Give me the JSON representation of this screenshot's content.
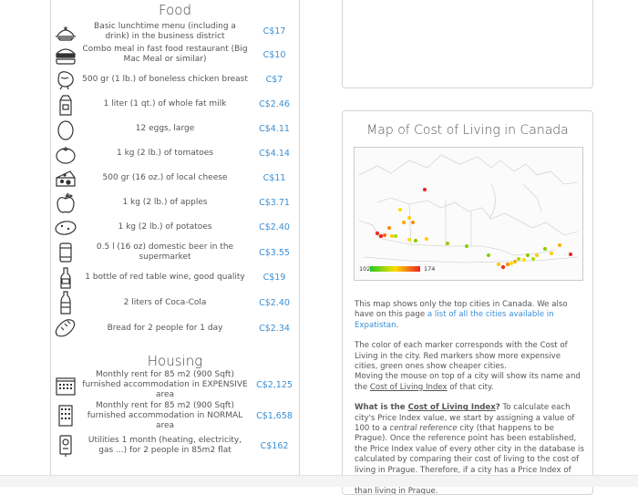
{
  "food": {
    "title": "Food",
    "items": [
      {
        "icon": "tray-icon",
        "label": "Basic lunchtime menu (including a drink) in the business district",
        "price": "C$17"
      },
      {
        "icon": "burger-icon",
        "label": "Combo meal in fast food restaurant (Big Mac Meal or similar)",
        "price": "C$10"
      },
      {
        "icon": "chicken-icon",
        "label": "500 gr (1 lb.) of boneless chicken breast",
        "price": "C$7"
      },
      {
        "icon": "milk-carton-icon",
        "label": "1 liter (1 qt.) of whole fat milk",
        "price": "C$2.46"
      },
      {
        "icon": "egg-icon",
        "label": "12 eggs, large",
        "price": "C$4.11"
      },
      {
        "icon": "tomato-icon",
        "label": "1 kg (2 lb.) of tomatoes",
        "price": "C$4.14"
      },
      {
        "icon": "cheese-icon",
        "label": "500 gr (16 oz.) of local cheese",
        "price": "C$11"
      },
      {
        "icon": "apple-icon",
        "label": "1 kg (2 lb.) of apples",
        "price": "C$3.71"
      },
      {
        "icon": "potato-icon",
        "label": "1 kg (2 lb.) of potatoes",
        "price": "C$2.40"
      },
      {
        "icon": "beer-can-icon",
        "label": "0.5 l (16 oz) domestic beer in the supermarket",
        "price": "C$3.55"
      },
      {
        "icon": "wine-bottle-icon",
        "label": "1 bottle of red table wine, good quality",
        "price": "C$19"
      },
      {
        "icon": "soda-bottle-icon",
        "label": "2 liters of Coca-Cola",
        "price": "C$2.40"
      },
      {
        "icon": "bread-icon",
        "label": "Bread for 2 people for 1 day",
        "price": "C$2.34"
      }
    ]
  },
  "housing": {
    "title": "Housing",
    "items": [
      {
        "icon": "building-icon",
        "label": "Monthly rent for 85 m2 (900 Sqft) furnished accommodation in EXPENSIVE area",
        "price": "C$2,125"
      },
      {
        "icon": "building-normal-icon",
        "label": "Monthly rent for 85 m2 (900 Sqft) furnished accommodation in NORMAL area",
        "price": "C$1,658"
      },
      {
        "icon": "utilities-icon",
        "label": "Utilities 1 month (heating, electricity, gas ...) for 2 people in 85m2 flat",
        "price": "C$162"
      }
    ]
  },
  "map": {
    "title": "Map of Cost of Living in Canada",
    "legend_min": "102",
    "legend_max": "174",
    "legend_colors": [
      "#22cc22",
      "#ffdd00",
      "#ee2222"
    ],
    "p1_text": "This map shows only the top cities in Canada. We also have on this page ",
    "p1_link": "a list of all the cities available in Expatistan",
    "p1_end": ".",
    "p2_line1": "The color of each marker corresponds with the Cost of Living in the city. Red markers show more expensive cities, green ones show cheaper cities.",
    "p2_line2": "Moving the mouse on top of a city will show its name and the ",
    "p2_link": "Cost of Living Index",
    "p2_end": " of that city.",
    "p3_bold_a": "What is the ",
    "p3_bold_link": "Cost of Living Index",
    "p3_bold_b": "?",
    "p3_text_a": " To calculate each city's Price Index value, we start by assigning a value of 100 to a ",
    "p3_italic": "central reference",
    "p3_text_b": " city (that happens to be Prague). Once the reference point has been established, the Price Index value of every other city in the database is calculated by comparing their cost of living to the cost of living in Prague. Therefore, if a city has a Price Index of 134, that means that living there is 34% more expensive than living in Prague."
  }
}
